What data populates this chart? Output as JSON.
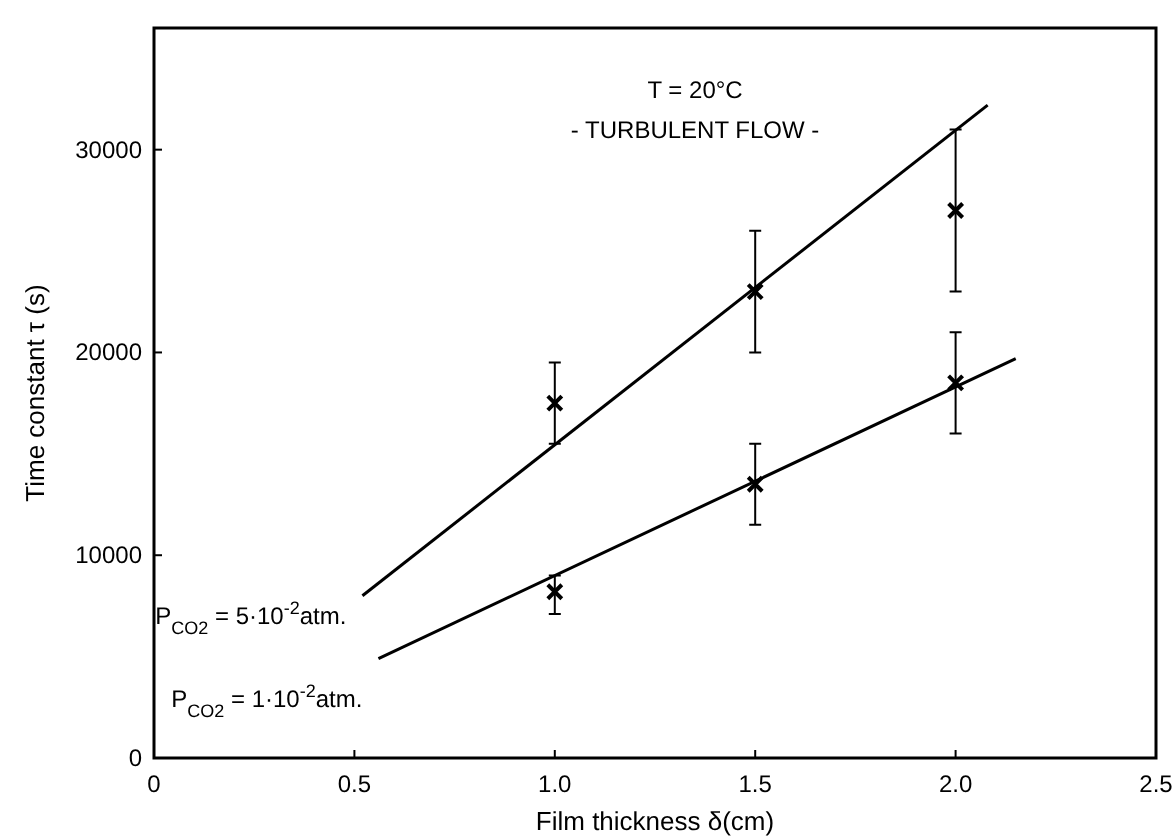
{
  "chart_data": {
    "type": "scatter",
    "xlabel": "Film thickness  δ(cm)",
    "ylabel": "Time constant  τ (s)",
    "annotations": [
      "T = 20°C",
      "- TURBULENT FLOW -"
    ],
    "xlim": [
      0,
      2.5
    ],
    "xticks": [
      0,
      0.5,
      {
        "value": 1,
        "label": "1.0"
      },
      1.5,
      {
        "value": 2,
        "label": "2.0"
      },
      2.5
    ],
    "ylim": [
      0,
      36000
    ],
    "yticks": [
      0,
      10000,
      20000,
      30000
    ],
    "grid": false,
    "marker": "cross",
    "series": [
      {
        "color": "#000000",
        "x": [
          1,
          1.5,
          2
        ],
        "values": [
          17500,
          23000,
          27000
        ],
        "errors": [
          [
            15500,
            19500
          ],
          [
            20000,
            26000
          ],
          [
            23000,
            31000
          ]
        ]
      },
      {
        "color": "#000000",
        "x": [
          1,
          1.5,
          2
        ],
        "values": [
          8200,
          13500,
          18500
        ],
        "errors": [
          [
            7100,
            9000
          ],
          [
            11500,
            15500
          ],
          [
            16000,
            21000
          ]
        ]
      },
      {
        "type": "line",
        "name": "P$_{CO2}$ = 5·10$^{-2}$atm.",
        "color": "#000000",
        "x": [
          0.52,
          2.08
        ],
        "values": [
          8000,
          32200
        ],
        "line_style": "solid",
        "marker": "none"
      },
      {
        "type": "line",
        "name": "P$_{CO2}$ = 1·10$^{-2}$atm.",
        "color": "#000000",
        "x": [
          0.56,
          2.15
        ],
        "values": [
          4900,
          19700
        ],
        "line_style": "solid",
        "marker": "none"
      }
    ]
  }
}
